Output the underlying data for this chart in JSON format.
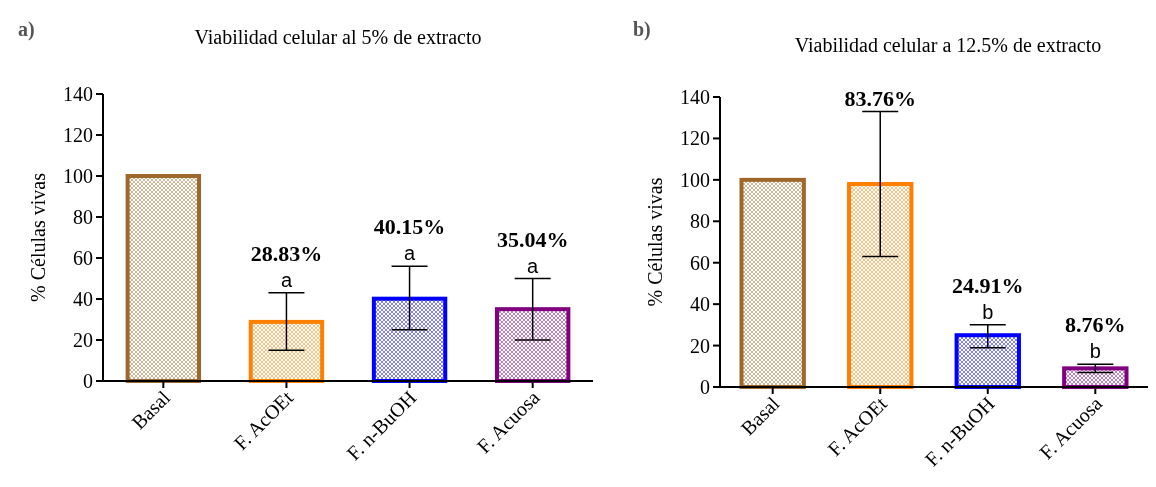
{
  "chart_data": [
    {
      "type": "bar",
      "title": "Viabilidad celular al 5% de extracto",
      "ylabel": "% Células vivas",
      "categories": [
        "Basal",
        "F. AcOEt",
        "F. n-BuOH",
        "F. Acuosa"
      ],
      "values": [
        100,
        28.83,
        40.15,
        35.04
      ],
      "colors": [
        "#a0672a",
        "#ff8000",
        "#0000ff",
        "#800080"
      ],
      "errors": [
        null,
        [
          15,
          43
        ],
        [
          25,
          56
        ],
        [
          20,
          50
        ]
      ],
      "ylim": [
        0,
        140
      ],
      "yticks": [
        0,
        20,
        40,
        60,
        80,
        100,
        120,
        140
      ],
      "annotations": [
        "a)",
        {
          "text": "a",
          "x": "F. AcOEt",
          "y": 43
        },
        {
          "text": "28.83%",
          "x": "F. AcOEt",
          "y": 43
        },
        {
          "text": "a",
          "x": "F. n-BuOH",
          "y": 56
        },
        {
          "text": "40.15%",
          "x": "F. n-BuOH",
          "y": 56
        },
        {
          "text": "a",
          "x": "F. Acuosa",
          "y": 50
        },
        {
          "text": "35.04%",
          "x": "F. Acuosa",
          "y": 50
        }
      ]
    },
    {
      "type": "bar",
      "title": "Viabilidad celular a 12.5% de extracto",
      "ylabel": "% Células vivas",
      "categories": [
        "Basal",
        "F. AcOEt",
        "F. n-BuOH",
        "F. Acuosa"
      ],
      "values": [
        100,
        98,
        25,
        9
      ],
      "colors": [
        "#a0672a",
        "#ff8000",
        "#0000ff",
        "#800080"
      ],
      "errors": [
        null,
        [
          63,
          133
        ],
        [
          19,
          30
        ],
        [
          7,
          11
        ]
      ],
      "ylim": [
        0,
        140
      ],
      "yticks": [
        0,
        20,
        40,
        60,
        80,
        100,
        120,
        140
      ],
      "annotations": [
        "b)",
        {
          "text": "83.76%",
          "x": "F. AcOEt",
          "y": 133
        },
        {
          "text": "b",
          "x": "F. n-BuOH",
          "y": 30
        },
        {
          "text": "24.91%",
          "x": "F. n-BuOH",
          "y": 30
        },
        {
          "text": "b",
          "x": "F. Acuosa",
          "y": 11
        },
        {
          "text": "8.76%",
          "x": "F. Acuosa",
          "y": 11
        }
      ]
    }
  ]
}
